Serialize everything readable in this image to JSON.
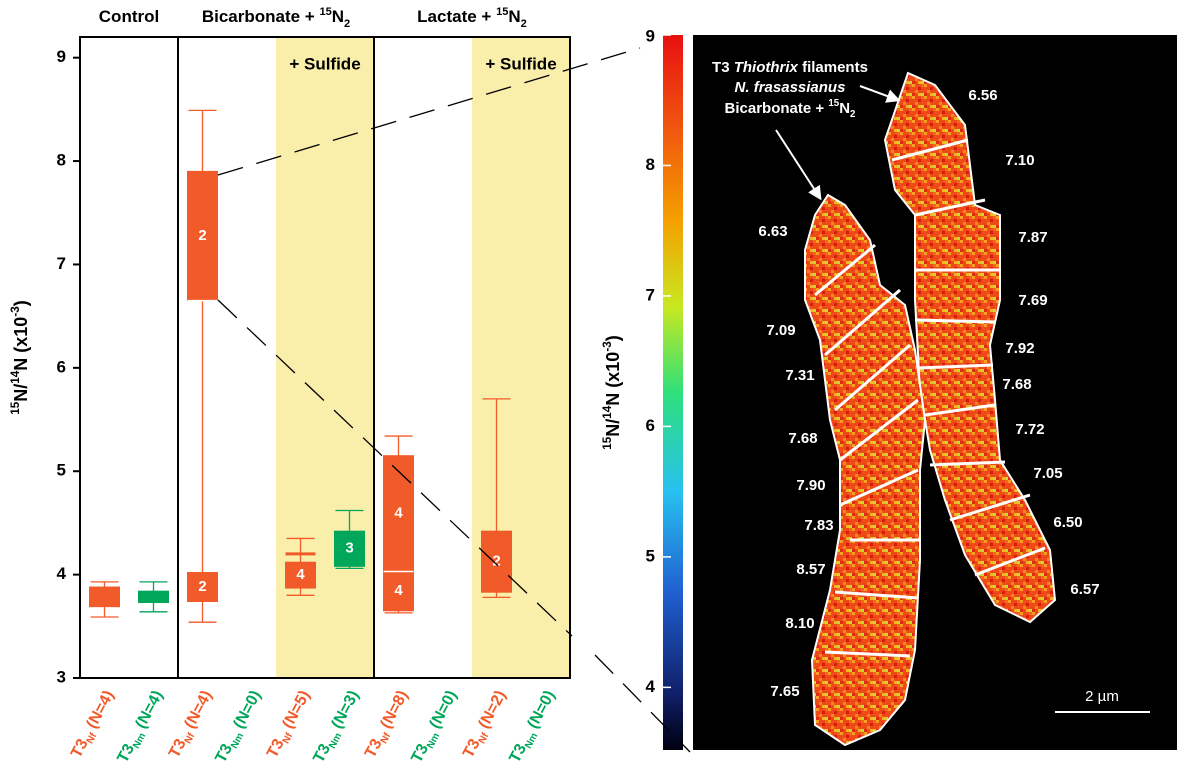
{
  "chart_data": [
    {
      "type": "box",
      "ylim": [
        3,
        9.2
      ],
      "yticks": [
        3,
        4,
        5,
        6,
        7,
        8,
        9
      ],
      "ylabel": {
        "parts": [
          {
            "text": "15",
            "style": "sup"
          },
          {
            "text": "N/"
          },
          {
            "text": "14",
            "style": "sup"
          },
          {
            "text": "N (x10"
          },
          {
            "text": "-3",
            "style": "sup"
          },
          {
            "text": ")"
          }
        ]
      },
      "colors": {
        "Nf": "#f15a29",
        "Nm": "#00a65a"
      },
      "shade": "#f9eeaa",
      "groups": [
        {
          "name": {
            "parts": [
              {
                "text": "Control"
              }
            ]
          },
          "panels": [
            {
              "categories": [
                {
                  "strain": "T3",
                  "sub": "Nf",
                  "n": "(N=4)",
                  "whisker": [
                    3.59,
                    3.93
                  ],
                  "boxes": [
                    {
                      "range": [
                        3.69,
                        3.88
                      ]
                    }
                  ]
                },
                {
                  "strain": "T3",
                  "sub": "Nm",
                  "n": "(N=4)",
                  "whisker": [
                    3.64,
                    3.93
                  ],
                  "boxes": [
                    {
                      "range": [
                        3.73,
                        3.84
                      ]
                    }
                  ]
                }
              ]
            }
          ]
        },
        {
          "name": {
            "parts": [
              {
                "text": "Bicarbonate + "
              },
              {
                "text": "15",
                "style": "sup"
              },
              {
                "text": "N"
              },
              {
                "text": "2",
                "style": "sub"
              }
            ]
          },
          "panels": [
            {
              "categories": [
                {
                  "strain": "T3",
                  "sub": "Nf",
                  "n": "(N=4)",
                  "whisker": [
                    3.54,
                    8.49
                  ],
                  "boxes": [
                    {
                      "range": [
                        3.74,
                        4.02
                      ],
                      "label": "2"
                    },
                    {
                      "range": [
                        6.65,
                        7.9
                      ],
                      "label": "2"
                    }
                  ]
                },
                {
                  "strain": "T3",
                  "sub": "Nm",
                  "n": "(N=0)"
                }
              ]
            },
            {
              "label": "+ Sulfide",
              "categories": [
                {
                  "strain": "T3",
                  "sub": "Nf",
                  "n": "(N=5)",
                  "whisker": [
                    3.8,
                    4.35
                  ],
                  "boxes": [
                    {
                      "range": [
                        3.87,
                        4.12
                      ],
                      "label": "4"
                    }
                  ],
                  "lines": [
                    4.2
                  ]
                },
                {
                  "strain": "T3",
                  "sub": "Nm",
                  "n": "(N=3)",
                  "whisker": [
                    4.06,
                    4.62
                  ],
                  "boxes": [
                    {
                      "range": [
                        4.08,
                        4.42
                      ],
                      "label": "3"
                    }
                  ]
                }
              ]
            }
          ]
        },
        {
          "name": {
            "parts": [
              {
                "text": "Lactate + "
              },
              {
                "text": "15",
                "style": "sup"
              },
              {
                "text": "N"
              },
              {
                "text": "2",
                "style": "sub"
              }
            ]
          },
          "panels": [
            {
              "categories": [
                {
                  "strain": "T3",
                  "sub": "Nf",
                  "n": "(N=8)",
                  "whisker": [
                    3.63,
                    5.34
                  ],
                  "boxes": [
                    {
                      "range": [
                        3.65,
                        4.03
                      ],
                      "label": "4"
                    },
                    {
                      "range": [
                        4.03,
                        5.15
                      ],
                      "label": "4"
                    }
                  ]
                },
                {
                  "strain": "T3",
                  "sub": "Nm",
                  "n": "(N=0)"
                }
              ]
            },
            {
              "label": "+ Sulfide",
              "categories": [
                {
                  "strain": "T3",
                  "sub": "Nf",
                  "n": "(N=2)",
                  "whisker": [
                    3.78,
                    5.7
                  ],
                  "boxes": [
                    {
                      "range": [
                        3.83,
                        4.42
                      ],
                      "label": "2"
                    }
                  ]
                },
                {
                  "strain": "T3",
                  "sub": "Nm",
                  "n": "(N=0)"
                }
              ]
            }
          ]
        }
      ]
    },
    {
      "type": "colorbar",
      "ylim": [
        3.52,
        9
      ],
      "yticks": [
        4,
        5,
        6,
        7,
        8,
        9
      ],
      "ylabel": {
        "parts": [
          {
            "text": "15",
            "style": "sup"
          },
          {
            "text": "N/"
          },
          {
            "text": "14",
            "style": "sup"
          },
          {
            "text": "N (x10"
          },
          {
            "text": "-3",
            "style": "sup"
          },
          {
            "text": ")"
          }
        ]
      }
    }
  ],
  "image": {
    "annotation": [
      {
        "parts": [
          {
            "text": "T3 "
          },
          {
            "text": "Thiothrix",
            "style": "italic"
          },
          {
            "text": " filaments"
          }
        ]
      },
      {
        "parts": [
          {
            "text": "N. frasassianus",
            "style": "italic"
          }
        ]
      },
      {
        "parts": [
          {
            "text": "Bicarbonate + "
          },
          {
            "text": "15",
            "style": "sup"
          },
          {
            "text": "N"
          },
          {
            "text": "2",
            "style": "sub"
          }
        ]
      }
    ],
    "segment_values": [
      "6.56",
      "7.10",
      "7.87",
      "7.69",
      "7.92",
      "7.68",
      "7.72",
      "7.05",
      "6.50",
      "6.57",
      "6.63",
      "7.09",
      "7.31",
      "7.68",
      "7.90",
      "7.83",
      "8.57",
      "8.10",
      "7.65"
    ],
    "scale_bar": "2 µm"
  }
}
